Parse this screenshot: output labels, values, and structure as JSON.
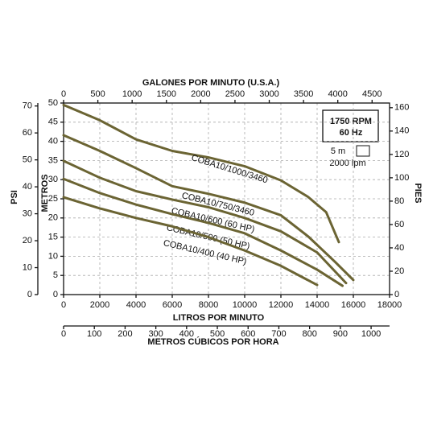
{
  "chart_data": {
    "type": "line",
    "grid": true,
    "xlabel": "LITROS POR MINUTO",
    "xlim": [
      0,
      18000
    ],
    "xticks": [
      0,
      2000,
      4000,
      6000,
      8000,
      10000,
      12000,
      14000,
      16000,
      18000
    ],
    "ylabel": "METROS",
    "ylim": [
      0,
      50
    ],
    "yticks": [
      0,
      5,
      10,
      15,
      20,
      25,
      30,
      35,
      40,
      45,
      50
    ],
    "y2label": "PIES",
    "y2lim": [
      0,
      164
    ],
    "y2ticks": [
      0,
      20,
      40,
      60,
      80,
      100,
      120,
      140,
      160
    ],
    "top_axis": {
      "label": "GALONES POR MINUTO (U.S.A.)",
      "lim": [
        0,
        4755
      ],
      "ticks": [
        0,
        500,
        1000,
        1500,
        2000,
        2500,
        3000,
        3500,
        4000,
        4500
      ]
    },
    "bottom_axis2": {
      "label": "METROS CÚBICOS POR HORA",
      "lim": [
        0,
        1060
      ],
      "ticks": [
        0,
        100,
        200,
        300,
        400,
        500,
        600,
        700,
        800,
        900,
        1000
      ]
    },
    "left_axis2": {
      "label": "PSI",
      "lim": [
        0,
        71.1
      ],
      "ticks": [
        0,
        10,
        20,
        30,
        40,
        50,
        60,
        70
      ]
    },
    "info_box": {
      "lines": [
        "1750 RPM",
        "60 Hz"
      ],
      "scale_y": "5 m",
      "scale_x": "2000 lpm"
    },
    "series": [
      {
        "name": "COBA10/1000/3460",
        "color": "#6b6433",
        "x": [
          0,
          2000,
          4000,
          6000,
          8000,
          10000,
          12000,
          13500,
          14500,
          15200
        ],
        "values": [
          49.5,
          45.5,
          40.5,
          37.5,
          35.8,
          33.5,
          29.8,
          25.5,
          21.5,
          13.7
        ]
      },
      {
        "name": "COBA10/750/3460",
        "color": "#6b6433",
        "x": [
          0,
          2000,
          4000,
          6000,
          8000,
          10000,
          12000,
          13500,
          15000,
          16000
        ],
        "values": [
          41.6,
          37.5,
          33,
          28.3,
          26.3,
          24,
          20.7,
          15.2,
          8.5,
          3.8
        ]
      },
      {
        "name": "COBA10/600 (60 HP)",
        "color": "#6b6433",
        "x": [
          0,
          2000,
          4000,
          6000,
          8000,
          10000,
          12000,
          14000,
          15600
        ],
        "values": [
          34.9,
          30.5,
          27,
          24.8,
          22.8,
          20,
          16.5,
          11,
          3
        ]
      },
      {
        "name": "COBA10/500 (50 HP)",
        "color": "#6b6433",
        "x": [
          0,
          2000,
          4000,
          6000,
          8000,
          10000,
          12000,
          14000,
          15400
        ],
        "values": [
          30.2,
          26.5,
          23.5,
          21,
          18.7,
          16,
          11.5,
          6.5,
          2.3
        ]
      },
      {
        "name": "COBA10/400 (40 HP)",
        "color": "#6b6433",
        "x": [
          0,
          2000,
          4000,
          6000,
          8000,
          10000,
          12000,
          14000
        ],
        "values": [
          25.4,
          22.5,
          20,
          17.8,
          15,
          11.5,
          7.5,
          2.5
        ]
      }
    ]
  }
}
